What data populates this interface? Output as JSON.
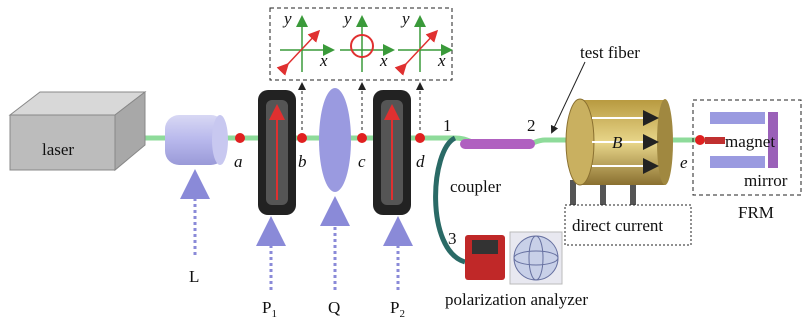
{
  "source": {
    "laser": "laser",
    "lens": "L"
  },
  "points": [
    "a",
    "b",
    "c",
    "d",
    "e"
  ],
  "polarizer_1": {
    "text": "P",
    "sub": "1"
  },
  "waveplate": "Q",
  "polarizer_2": {
    "text": "P",
    "sub": "2"
  },
  "inset": {
    "panels": [
      {
        "y": "y",
        "x": "x"
      },
      {
        "y": "y",
        "x": "x"
      },
      {
        "y": "y",
        "x": "x"
      }
    ]
  },
  "ports": [
    "1",
    "2",
    "3"
  ],
  "coupler": "coupler",
  "test_fiber": "test fiber",
  "field": "B",
  "current": "direct current",
  "frm": {
    "magnet": "magnet",
    "mirror": "mirror",
    "label": "FRM"
  },
  "analyzer": "polarization analyzer"
}
